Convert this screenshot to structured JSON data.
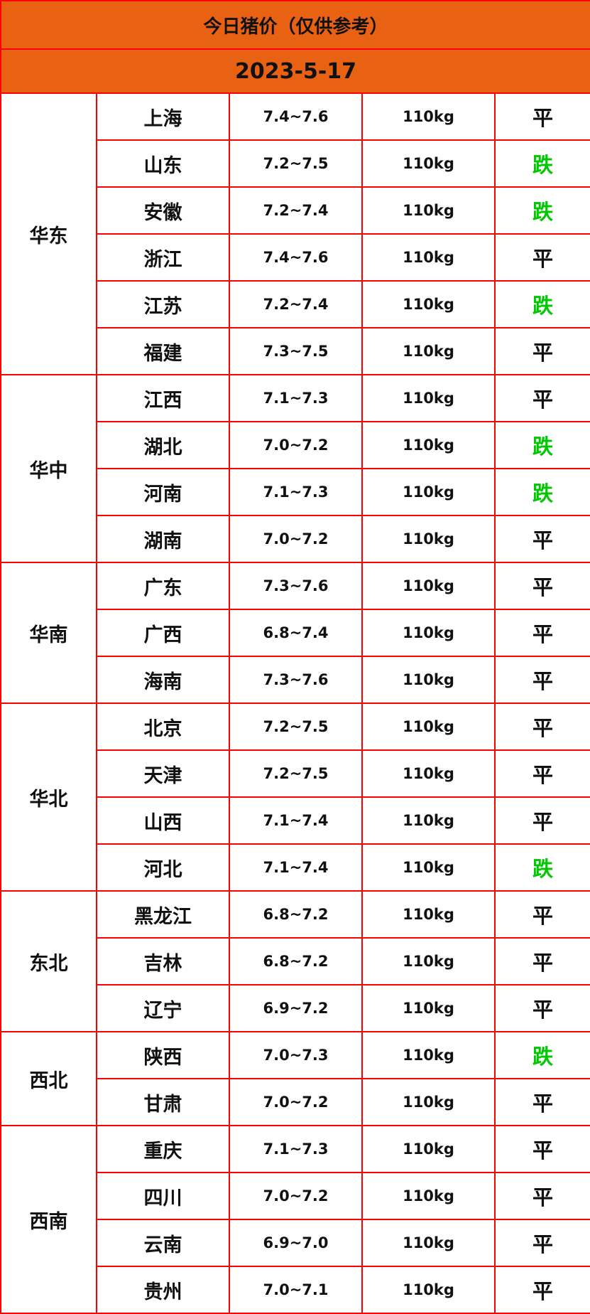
{
  "title": "今日猪价（仅供参考）",
  "date": "2023-5-17",
  "colors": {
    "header_bg": "#e96214",
    "border": "#ff0000",
    "fall": "#00c800",
    "flat": "#111111"
  },
  "regions": [
    {
      "name": "华东",
      "rows": [
        {
          "province": "上海",
          "price": "7.4~7.6",
          "weight": "110kg",
          "trend": "平"
        },
        {
          "province": "山东",
          "price": "7.2~7.5",
          "weight": "110kg",
          "trend": "跌"
        },
        {
          "province": "安徽",
          "price": "7.2~7.4",
          "weight": "110kg",
          "trend": "跌"
        },
        {
          "province": "浙江",
          "price": "7.4~7.6",
          "weight": "110kg",
          "trend": "平"
        },
        {
          "province": "江苏",
          "price": "7.2~7.4",
          "weight": "110kg",
          "trend": "跌"
        },
        {
          "province": "福建",
          "price": "7.3~7.5",
          "weight": "110kg",
          "trend": "平"
        }
      ]
    },
    {
      "name": "华中",
      "rows": [
        {
          "province": "江西",
          "price": "7.1~7.3",
          "weight": "110kg",
          "trend": "平"
        },
        {
          "province": "湖北",
          "price": "7.0~7.2",
          "weight": "110kg",
          "trend": "跌"
        },
        {
          "province": "河南",
          "price": "7.1~7.3",
          "weight": "110kg",
          "trend": "跌"
        },
        {
          "province": "湖南",
          "price": "7.0~7.2",
          "weight": "110kg",
          "trend": "平"
        }
      ]
    },
    {
      "name": "华南",
      "rows": [
        {
          "province": "广东",
          "price": "7.3~7.6",
          "weight": "110kg",
          "trend": "平"
        },
        {
          "province": "广西",
          "price": "6.8~7.4",
          "weight": "110kg",
          "trend": "平"
        },
        {
          "province": "海南",
          "price": "7.3~7.6",
          "weight": "110kg",
          "trend": "平"
        }
      ]
    },
    {
      "name": "华北",
      "rows": [
        {
          "province": "北京",
          "price": "7.2~7.5",
          "weight": "110kg",
          "trend": "平"
        },
        {
          "province": "天津",
          "price": "7.2~7.5",
          "weight": "110kg",
          "trend": "平"
        },
        {
          "province": "山西",
          "price": "7.1~7.4",
          "weight": "110kg",
          "trend": "平"
        },
        {
          "province": "河北",
          "price": "7.1~7.4",
          "weight": "110kg",
          "trend": "跌"
        }
      ]
    },
    {
      "name": "东北",
      "rows": [
        {
          "province": "黑龙江",
          "price": "6.8~7.2",
          "weight": "110kg",
          "trend": "平"
        },
        {
          "province": "吉林",
          "price": "6.8~7.2",
          "weight": "110kg",
          "trend": "平"
        },
        {
          "province": "辽宁",
          "price": "6.9~7.2",
          "weight": "110kg",
          "trend": "平"
        }
      ]
    },
    {
      "name": "西北",
      "rows": [
        {
          "province": "陕西",
          "price": "7.0~7.3",
          "weight": "110kg",
          "trend": "跌"
        },
        {
          "province": "甘肃",
          "price": "7.0~7.2",
          "weight": "110kg",
          "trend": "平"
        }
      ]
    },
    {
      "name": "西南",
      "rows": [
        {
          "province": "重庆",
          "price": "7.1~7.3",
          "weight": "110kg",
          "trend": "平"
        },
        {
          "province": "四川",
          "price": "7.0~7.2",
          "weight": "110kg",
          "trend": "平"
        },
        {
          "province": "云南",
          "price": "6.9~7.0",
          "weight": "110kg",
          "trend": "平"
        },
        {
          "province": "贵州",
          "price": "7.0~7.1",
          "weight": "110kg",
          "trend": "平"
        }
      ]
    }
  ]
}
